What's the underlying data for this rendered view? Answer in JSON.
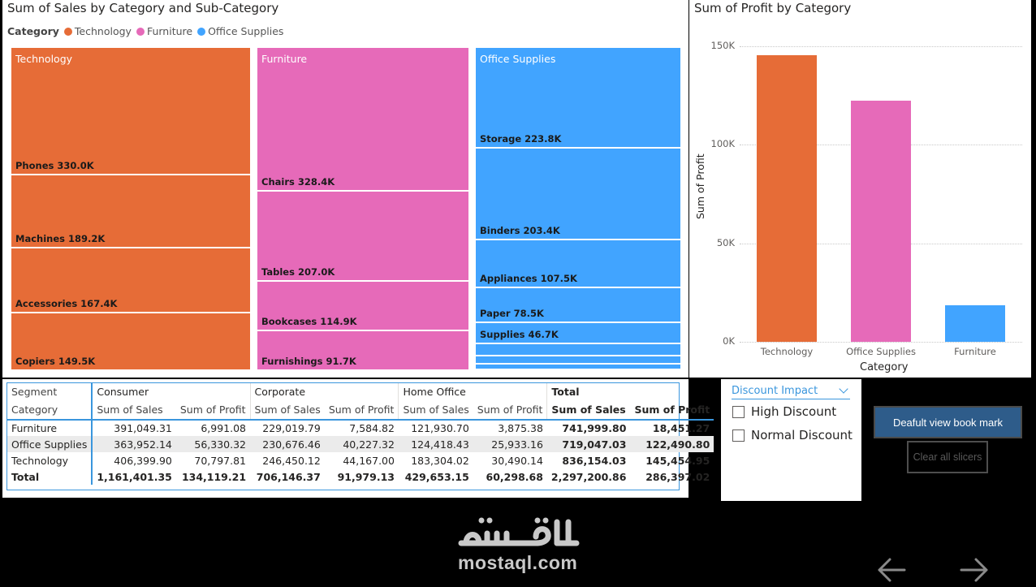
{
  "treemap": {
    "title": "Sum of Sales by Category and Sub-Category",
    "legend_title": "Category",
    "legend": [
      {
        "label": "Technology",
        "color": "#E66C37"
      },
      {
        "label": "Furniture",
        "color": "#E66AB9"
      },
      {
        "label": "Office Supplies",
        "color": "#41A4FF"
      }
    ],
    "groups": [
      {
        "category": "Technology",
        "color": "#E66C37",
        "tiles": [
          "Phones 330.0K",
          "Machines 189.2K",
          "Accessories 167.4K",
          "Copiers 149.5K"
        ]
      },
      {
        "category": "Furniture",
        "color": "#E66AB9",
        "tiles": [
          "Chairs 328.4K",
          "Tables 207.0K",
          "Bookcases 114.9K",
          "Furnishings 91.7K"
        ]
      },
      {
        "category": "Office Supplies",
        "color": "#41A4FF",
        "tiles": [
          "Storage 223.8K",
          "Binders 203.4K",
          "Appliances 107.5K",
          "Paper 78.5K",
          "Supplies 46.7K"
        ]
      }
    ]
  },
  "chart_data": [
    {
      "type": "treemap",
      "title": "Sum of Sales by Category and Sub-Category",
      "series": [
        {
          "name": "Technology",
          "categories": [
            "Phones",
            "Machines",
            "Accessories",
            "Copiers"
          ],
          "values": [
            330.0,
            189.2,
            167.4,
            149.5
          ],
          "unit": "K"
        },
        {
          "name": "Furniture",
          "categories": [
            "Chairs",
            "Tables",
            "Bookcases",
            "Furnishings"
          ],
          "values": [
            328.4,
            207.0,
            114.9,
            91.7
          ],
          "unit": "K"
        },
        {
          "name": "Office Supplies",
          "categories": [
            "Storage",
            "Binders",
            "Appliances",
            "Paper",
            "Supplies"
          ],
          "values": [
            223.8,
            203.4,
            107.5,
            78.5,
            46.7
          ],
          "unit": "K"
        }
      ]
    },
    {
      "type": "bar",
      "title": "Sum of Profit by Category",
      "categories": [
        "Technology",
        "Office Supplies",
        "Furniture"
      ],
      "values": [
        145454.95,
        122490.8,
        18451.27
      ],
      "colors": [
        "#E66C37",
        "#E66AB9",
        "#41A4FF"
      ],
      "xlabel": "Category",
      "ylabel": "Sum of Profit",
      "yticks": [
        "0K",
        "50K",
        "100K",
        "150K"
      ],
      "ylim": [
        0,
        160000
      ]
    }
  ],
  "matrix": {
    "segment_label": "Segment",
    "category_label": "Category",
    "segments": [
      "Consumer",
      "Corporate",
      "Home Office",
      "Total"
    ],
    "measures": [
      "Sum of Sales",
      "Sum of Profit"
    ],
    "rows": [
      {
        "category": "Furniture",
        "values": [
          "391,049.31",
          "6,991.08",
          "229,019.79",
          "7,584.82",
          "121,930.70",
          "3,875.38",
          "741,999.80",
          "18,451.27"
        ]
      },
      {
        "category": "Office Supplies",
        "values": [
          "363,952.14",
          "56,330.32",
          "230,676.46",
          "40,227.32",
          "124,418.43",
          "25,933.16",
          "719,047.03",
          "122,490.80"
        ]
      },
      {
        "category": "Technology",
        "values": [
          "406,399.90",
          "70,797.81",
          "246,450.12",
          "44,167.00",
          "183,304.02",
          "30,490.14",
          "836,154.03",
          "145,454.95"
        ]
      }
    ],
    "total": {
      "category": "Total",
      "values": [
        "1,161,401.35",
        "134,119.21",
        "706,146.37",
        "91,979.13",
        "429,653.15",
        "60,298.68",
        "2,297,200.86",
        "286,397.02"
      ]
    }
  },
  "slicer": {
    "title": "Discount Impact",
    "options": [
      "High Discount",
      "Normal Discount"
    ]
  },
  "buttons": {
    "bookmark": "Deafult view book mark",
    "clear": "Clear all slicers"
  },
  "watermark": {
    "text": "mostaql.com"
  }
}
